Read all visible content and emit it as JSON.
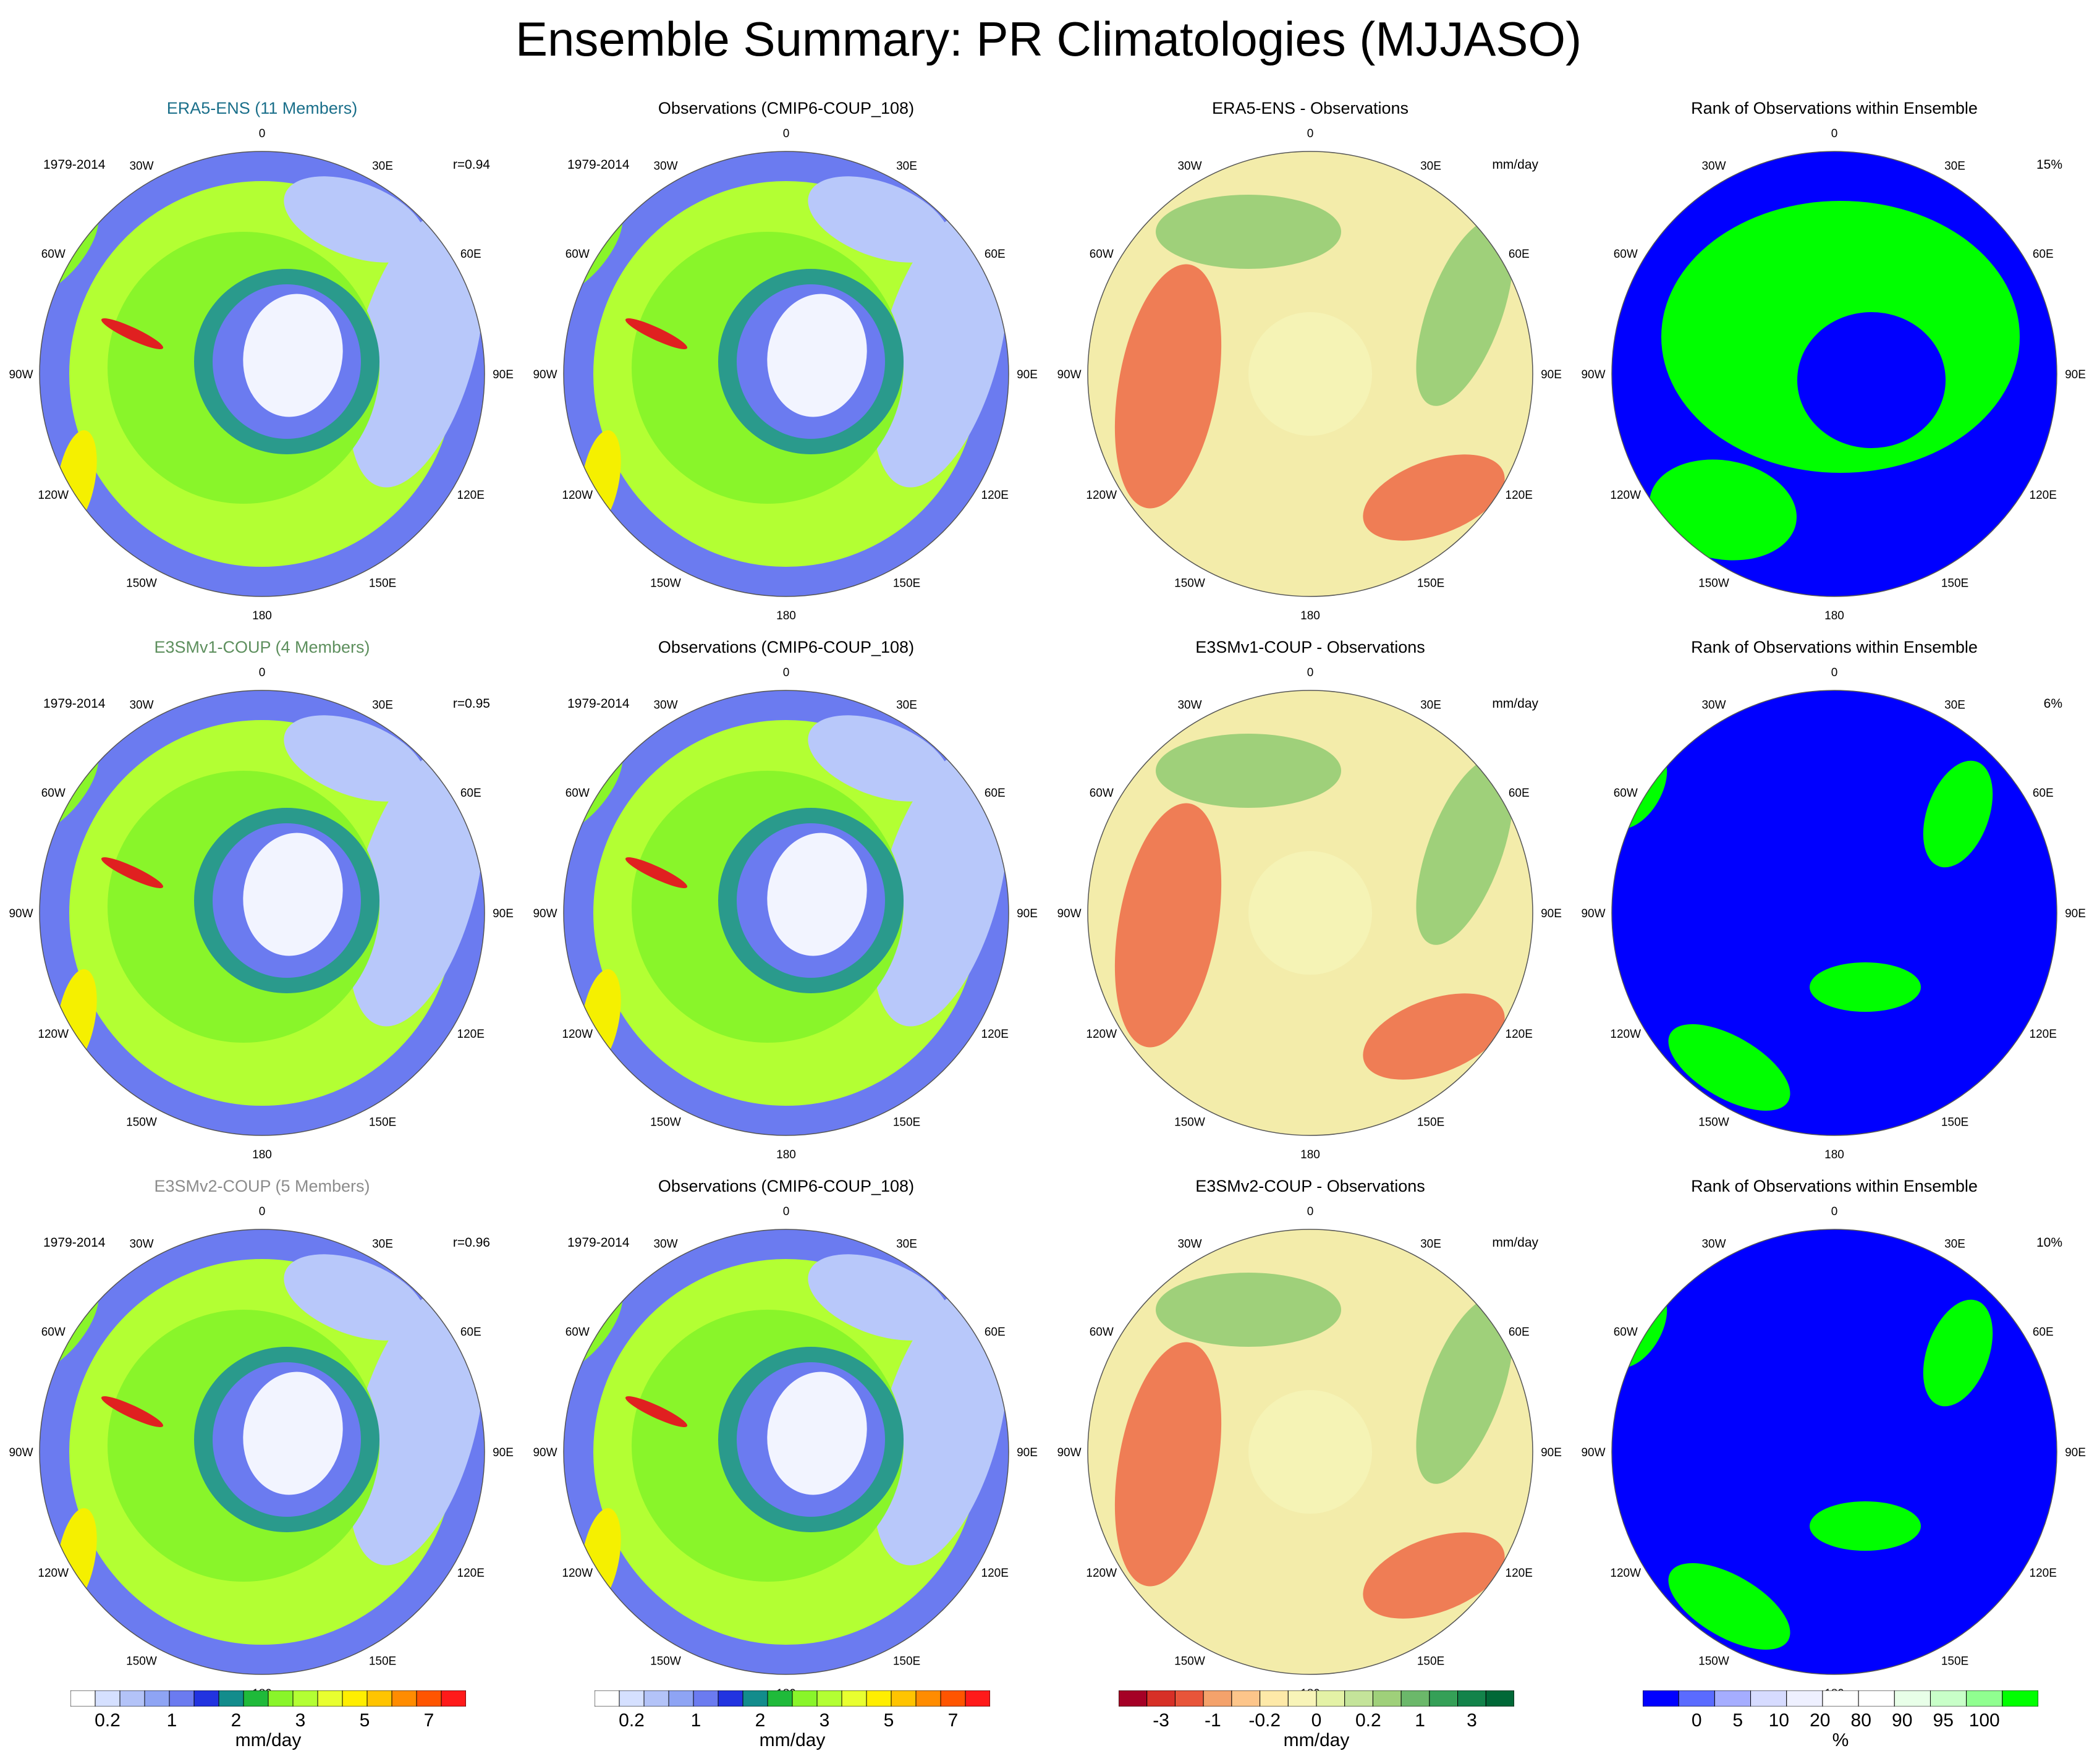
{
  "title": "Ensemble Summary: PR Climatologies (MJJASO)",
  "longitude_labels": [
    "0",
    "30E",
    "60E",
    "90E",
    "120E",
    "150E",
    "180",
    "150W",
    "120W",
    "90W",
    "60W",
    "30W"
  ],
  "colors": {
    "ocean_wet": "#b3ff33",
    "mid_green": "#89f52a",
    "dry_blue": "#6b7bf0",
    "light_blue": "#b8c8fa",
    "teal": "#2a9a8c",
    "antarctica": "#f2f4ff",
    "yellow": "#f5f000",
    "red": "#e02020",
    "diff_base": "#f3ecaa",
    "diff_red": "#ef7d55",
    "diff_green": "#9fd07a",
    "rank_blue": "#0000ff",
    "rank_green": "#00ff00"
  },
  "rows": [
    {
      "panels": [
        {
          "type": "field",
          "title": "ERA5-ENS (11 Members)",
          "title_color": "#1a6f8a",
          "left_label": "1979-2014",
          "right_label": "r=0.94"
        },
        {
          "type": "field",
          "title": "Observations (CMIP6-COUP_108)",
          "title_color": "#000000",
          "left_label": "1979-2014",
          "right_label": ""
        },
        {
          "type": "diff",
          "title": "ERA5-ENS - Observations",
          "title_color": "#000000",
          "left_label": "",
          "right_label": "mm/day"
        },
        {
          "type": "rank",
          "title": "Rank of Observations within Ensemble",
          "title_color": "#000000",
          "left_label": "",
          "right_label": "15%"
        }
      ]
    },
    {
      "panels": [
        {
          "type": "field",
          "title": "E3SMv1-COUP (4 Members)",
          "title_color": "#5d8f5d",
          "left_label": "1979-2014",
          "right_label": "r=0.95"
        },
        {
          "type": "field",
          "title": "Observations (CMIP6-COUP_108)",
          "title_color": "#000000",
          "left_label": "1979-2014",
          "right_label": ""
        },
        {
          "type": "diff",
          "title": "E3SMv1-COUP - Observations",
          "title_color": "#000000",
          "left_label": "",
          "right_label": "mm/day"
        },
        {
          "type": "rank",
          "title": "Rank of Observations within Ensemble",
          "title_color": "#000000",
          "left_label": "",
          "right_label": "6%"
        }
      ]
    },
    {
      "panels": [
        {
          "type": "field",
          "title": "E3SMv2-COUP (5 Members)",
          "title_color": "#8c8c8c",
          "left_label": "1979-2014",
          "right_label": "r=0.96"
        },
        {
          "type": "field",
          "title": "Observations (CMIP6-COUP_108)",
          "title_color": "#000000",
          "left_label": "1979-2014",
          "right_label": ""
        },
        {
          "type": "diff",
          "title": "E3SMv2-COUP - Observations",
          "title_color": "#000000",
          "left_label": "",
          "right_label": "mm/day"
        },
        {
          "type": "rank",
          "title": "Rank of Observations within Ensemble",
          "title_color": "#000000",
          "left_label": "",
          "right_label": "10%"
        }
      ]
    }
  ],
  "colorbars": [
    {
      "kind": "field",
      "unit": "mm/day",
      "colors": [
        "#ffffff",
        "#d5e0ff",
        "#b3c3f8",
        "#8ea4f4",
        "#6b7bf0",
        "#2233e0",
        "#128c8c",
        "#1fba3a",
        "#89f52a",
        "#b3ff33",
        "#e8ff30",
        "#ffee00",
        "#ffc400",
        "#ff8c00",
        "#ff5500",
        "#ff1a1a"
      ],
      "ticks": [
        "0.2",
        "1",
        "2",
        "3",
        "5",
        "7"
      ]
    },
    {
      "kind": "field",
      "unit": "mm/day",
      "colors": [
        "#ffffff",
        "#d5e0ff",
        "#b3c3f8",
        "#8ea4f4",
        "#6b7bf0",
        "#2233e0",
        "#128c8c",
        "#1fba3a",
        "#89f52a",
        "#b3ff33",
        "#e8ff30",
        "#ffee00",
        "#ffc400",
        "#ff8c00",
        "#ff5500",
        "#ff1a1a"
      ],
      "ticks": [
        "0.2",
        "1",
        "2",
        "3",
        "5",
        "7"
      ]
    },
    {
      "kind": "diff",
      "unit": "mm/day",
      "colors": [
        "#a50026",
        "#d73027",
        "#e8553a",
        "#f4a26b",
        "#fdc58a",
        "#fee9a8",
        "#f8f4b8",
        "#e4f2a6",
        "#c4e49a",
        "#9fd07a",
        "#6bb86a",
        "#35a057",
        "#13834a",
        "#006837"
      ],
      "ticks": [
        "-3",
        "-1",
        "-0.2",
        "0",
        "0.2",
        "1",
        "3"
      ]
    },
    {
      "kind": "rank",
      "unit": "%",
      "colors": [
        "#0000ff",
        "#5a6bff",
        "#a5adff",
        "#d6dbff",
        "#eef0ff",
        "#ffffff",
        "#ffffff",
        "#e8ffe8",
        "#c8ffc8",
        "#90ff90",
        "#00ff00"
      ],
      "ticks": [
        "0",
        "5",
        "10",
        "20",
        "80",
        "90",
        "95",
        "100"
      ]
    }
  ]
}
